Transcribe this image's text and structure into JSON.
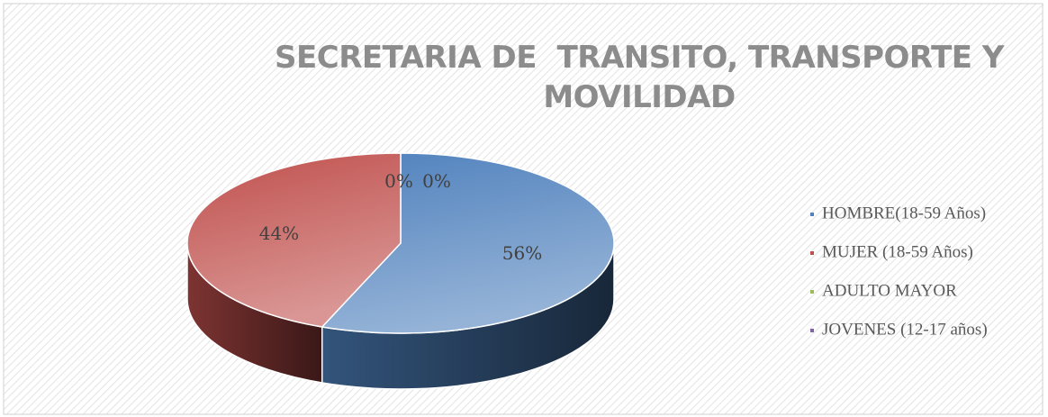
{
  "chart_data": {
    "type": "pie",
    "title": "SECRETARIA DE  TRANSITO, TRANSPORTE Y MOVILIDAD",
    "categories": [
      "HOMBRE(18-59 Años)",
      "MUJER (18-59 Años)",
      "ADULTO MAYOR",
      "JOVENES (12-17 años)"
    ],
    "values": [
      56,
      44,
      0,
      0
    ],
    "value_labels": [
      "56%",
      "44%",
      "0%",
      "0%"
    ],
    "colors": [
      "#4f81bd",
      "#c0504d",
      "#9bbb59",
      "#8064a2"
    ],
    "legend": "right"
  }
}
